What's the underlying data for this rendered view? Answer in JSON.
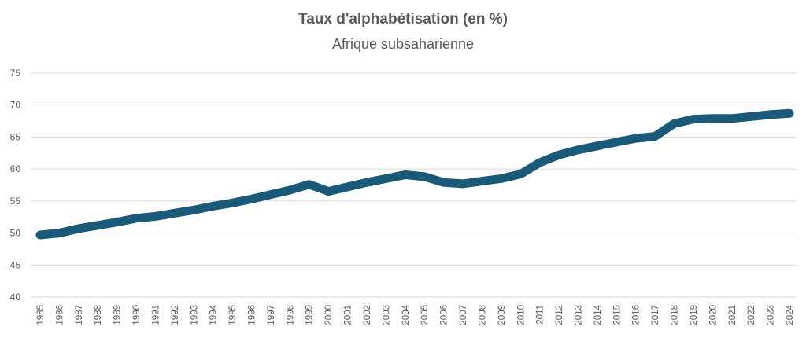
{
  "chart_data": {
    "type": "line",
    "title": "Taux d'alphabétisation (en %)",
    "subtitle": "Afrique subsaharienne",
    "xlabel": "",
    "ylabel": "",
    "ylim": [
      40,
      75
    ],
    "yticks": [
      40,
      45,
      50,
      55,
      60,
      65,
      70,
      75
    ],
    "grid": true,
    "series_color": "#1a5a78",
    "grid_color": "#d9d9d9",
    "categories": [
      "1985",
      "1986",
      "1987",
      "1988",
      "1989",
      "1990",
      "1991",
      "1992",
      "1993",
      "1994",
      "1995",
      "1996",
      "1997",
      "1998",
      "1999",
      "2000",
      "2001",
      "2002",
      "2003",
      "2004",
      "2005",
      "2006",
      "2007",
      "2008",
      "2009",
      "2010",
      "2011",
      "2012",
      "2013",
      "2014",
      "2015",
      "2016",
      "2017",
      "2018",
      "2019",
      "2020",
      "2021",
      "2022",
      "2023",
      "2024"
    ],
    "series": [
      {
        "name": "Afrique subsaharienne",
        "values": [
          49.7,
          50.0,
          50.7,
          51.2,
          51.7,
          52.3,
          52.6,
          53.1,
          53.6,
          54.2,
          54.7,
          55.3,
          56.0,
          56.7,
          57.6,
          56.5,
          57.2,
          57.9,
          58.5,
          59.1,
          58.8,
          57.9,
          57.7,
          58.1,
          58.5,
          59.2,
          61.0,
          62.2,
          63.0,
          63.6,
          64.2,
          64.8,
          65.1,
          67.1,
          67.8,
          67.9,
          67.9,
          68.2,
          68.5,
          68.7
        ]
      }
    ]
  }
}
